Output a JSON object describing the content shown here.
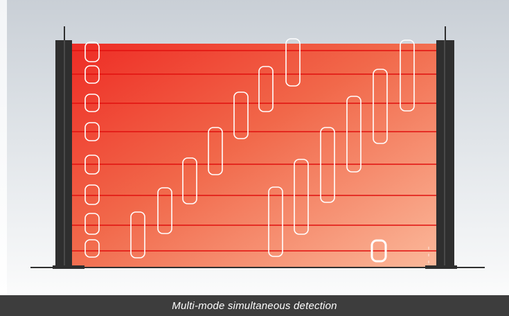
{
  "caption": "Multi-mode simultaneous detection",
  "colors": {
    "field_top_left": "#ee2c25",
    "field_bottom_right": "#fbb89a",
    "beam": "#e0100f",
    "post": "#2f2f2f",
    "post_edge": "#4a4a4a",
    "caption_bar": "#3d3d3d",
    "object_outline": "#ffffff"
  },
  "icons": [
    "left-post",
    "right-post",
    "antenna",
    "detection-object"
  ]
}
